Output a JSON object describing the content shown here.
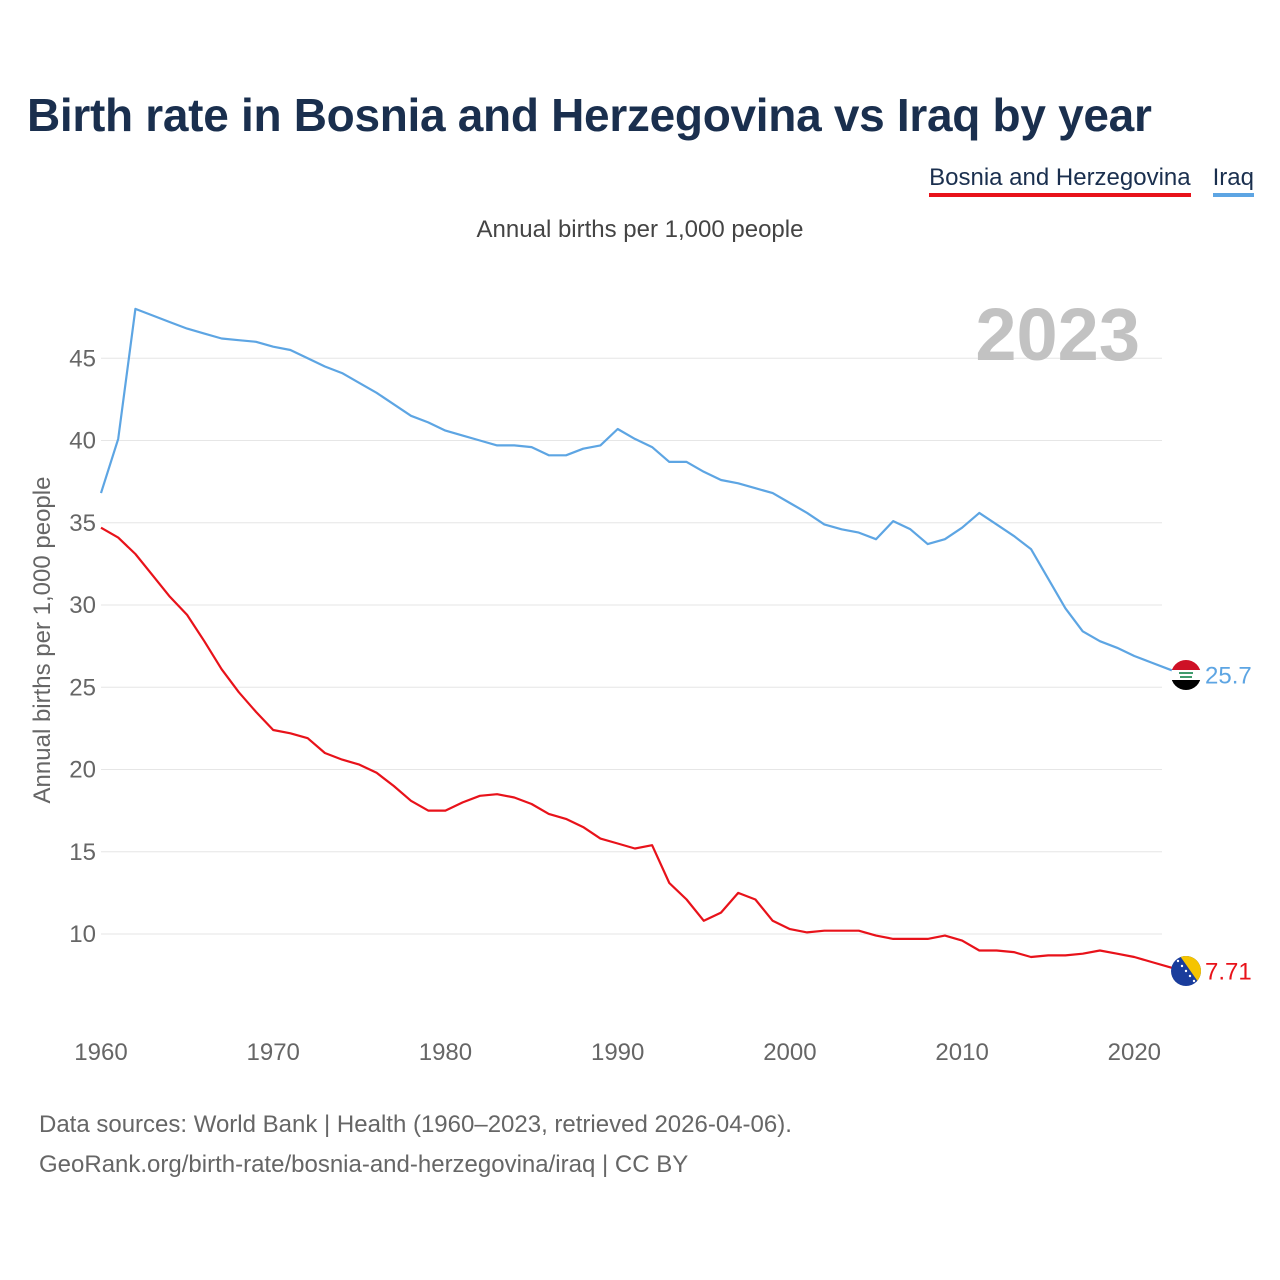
{
  "title": "Birth rate in Bosnia and Herzegovina vs Iraq by year",
  "legend": [
    {
      "label": "Bosnia and Herzegovina",
      "color": "#e8121a"
    },
    {
      "label": "Iraq",
      "color": "#5da5e3"
    }
  ],
  "subtitle": "Annual births per 1,000 people",
  "year_watermark": "2023",
  "source": {
    "line1": "Data sources: World Bank | Health (1960–2023, retrieved 2026-04-06).",
    "line2": "GeoRank.org/birth-rate/bosnia-and-herzegovina/iraq | CC BY"
  },
  "chart_data": {
    "type": "line",
    "title": "Birth rate in Bosnia and Herzegovina vs Iraq by year",
    "ylabel": "Annual births per 1,000 people",
    "xlabel": "",
    "xlim": [
      1960,
      2023
    ],
    "ylim": [
      5,
      48
    ],
    "x_ticks": [
      1960,
      1970,
      1980,
      1990,
      2000,
      2010,
      2020
    ],
    "y_ticks": [
      10,
      15,
      20,
      25,
      30,
      35,
      40,
      45
    ],
    "grid": true,
    "x": [
      1960,
      1961,
      1962,
      1963,
      1964,
      1965,
      1966,
      1967,
      1968,
      1969,
      1970,
      1971,
      1972,
      1973,
      1974,
      1975,
      1976,
      1977,
      1978,
      1979,
      1980,
      1981,
      1982,
      1983,
      1984,
      1985,
      1986,
      1987,
      1988,
      1989,
      1990,
      1991,
      1992,
      1993,
      1994,
      1995,
      1996,
      1997,
      1998,
      1999,
      2000,
      2001,
      2002,
      2003,
      2004,
      2005,
      2006,
      2007,
      2008,
      2009,
      2010,
      2011,
      2012,
      2013,
      2014,
      2015,
      2016,
      2017,
      2018,
      2019,
      2020,
      2021,
      2022,
      2023
    ],
    "series": [
      {
        "name": "Bosnia and Herzegovina",
        "color": "#e8121a",
        "end_label": "7.71",
        "flag": "bosnia-flag-icon",
        "values": [
          34.7,
          34.1,
          33.1,
          31.8,
          30.5,
          29.4,
          27.8,
          26.1,
          24.7,
          23.5,
          22.4,
          22.2,
          21.9,
          21.0,
          20.6,
          20.3,
          19.8,
          19.0,
          18.1,
          17.5,
          17.5,
          18.0,
          18.4,
          18.5,
          18.3,
          17.9,
          17.3,
          17.0,
          16.5,
          15.8,
          15.5,
          15.2,
          15.4,
          13.1,
          12.1,
          10.8,
          11.3,
          12.5,
          12.1,
          10.8,
          10.3,
          10.1,
          10.2,
          10.2,
          10.2,
          9.9,
          9.7,
          9.7,
          9.7,
          9.9,
          9.6,
          9.0,
          9.0,
          8.9,
          8.6,
          8.7,
          8.7,
          8.8,
          9.0,
          8.8,
          8.6,
          8.3,
          8.0,
          7.71
        ]
      },
      {
        "name": "Iraq",
        "color": "#5da5e3",
        "end_label": "25.7",
        "flag": "iraq-flag-icon",
        "values": [
          36.8,
          40.1,
          48.0,
          47.6,
          47.2,
          46.8,
          46.5,
          46.2,
          46.1,
          46.0,
          45.7,
          45.5,
          45.0,
          44.5,
          44.1,
          43.5,
          42.9,
          42.2,
          41.5,
          41.1,
          40.6,
          40.3,
          40.0,
          39.7,
          39.7,
          39.6,
          39.1,
          39.1,
          39.5,
          39.7,
          40.7,
          40.1,
          39.6,
          38.7,
          38.7,
          38.1,
          37.6,
          37.4,
          37.1,
          36.8,
          36.2,
          35.6,
          34.9,
          34.6,
          34.4,
          34.0,
          35.1,
          34.6,
          33.7,
          34.0,
          34.7,
          35.6,
          34.9,
          34.2,
          33.4,
          31.6,
          29.8,
          28.4,
          27.8,
          27.4,
          26.9,
          26.5,
          26.1,
          25.7
        ]
      }
    ]
  }
}
